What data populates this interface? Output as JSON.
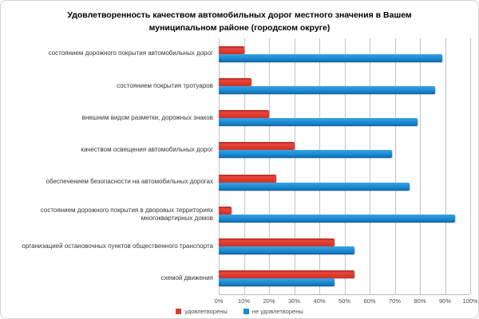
{
  "title": "Удовлетворенность качеством автомобильных дорог местного значения в Вашем муниципальном районе (городском округе)",
  "chart_data": {
    "type": "bar",
    "orientation": "horizontal",
    "title": "Удовлетворенность качеством автомобильных дорог местного значения в Вашем муниципальном районе (городском округе)",
    "categories": [
      "состоянием дорожного покрытия автомобильных дорог",
      "состоянием покрытия тротуаров",
      "внешним видом разметки, дорожных знаков",
      "качеством освещения автомобильных дорог",
      "обеспечением безопасности на автомобильных дорогах",
      "состоянием дорожного покрытия в дворовых территориях многоквартирных домов",
      "организацией остановочных пунктов общественного транспорта",
      "схемой движения"
    ],
    "series": [
      {
        "name": "удовлетворены",
        "color": "#dd3a2e",
        "values": [
          10,
          13,
          20,
          30,
          23,
          5,
          46,
          54
        ]
      },
      {
        "name": "не удовлетворены",
        "color": "#1b8ad2",
        "values": [
          89,
          86,
          79,
          69,
          76,
          94,
          54,
          46
        ]
      }
    ],
    "xlabel": "",
    "ylabel": "",
    "xlim": [
      0,
      100
    ],
    "x_ticks": [
      "0%",
      "10%",
      "20%",
      "30%",
      "40%",
      "50%",
      "60%",
      "70%",
      "80%",
      "90%",
      "100%"
    ],
    "grid": "vertical",
    "legend_position": "bottom"
  }
}
